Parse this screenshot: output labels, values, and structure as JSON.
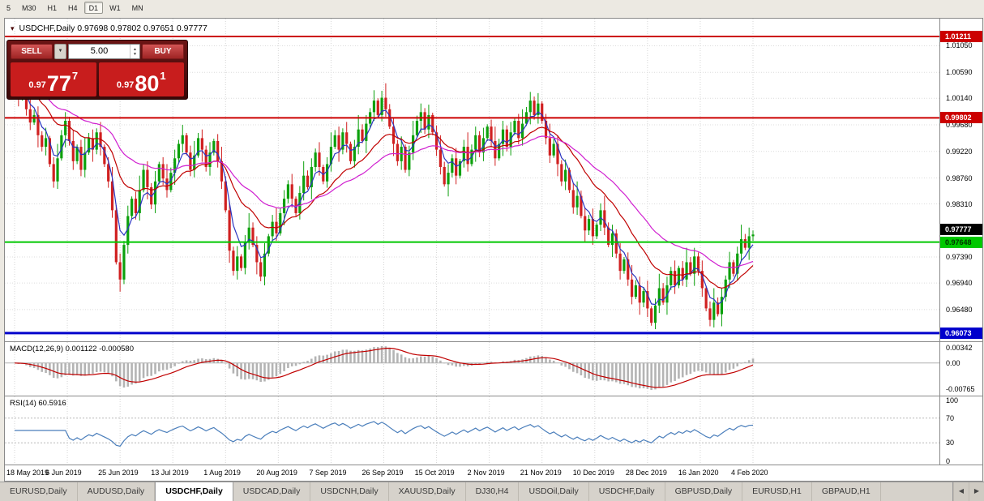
{
  "timeframe_bar": {
    "buttons": [
      "5",
      "M30",
      "H1",
      "H4",
      "D1",
      "W1",
      "MN"
    ],
    "active": "D1"
  },
  "chart": {
    "symbol_header": "USDCHF,Daily 0.97698 0.97802 0.97651 0.97777"
  },
  "trade_panel": {
    "sell_label": "SELL",
    "buy_label": "BUY",
    "volume": "5.00",
    "sell_price_big": "0.97",
    "sell_price_pips": "77",
    "sell_price_pip_sup": "7",
    "buy_price_big": "0.97",
    "buy_price_pips": "80",
    "buy_price_pip_sup": "1"
  },
  "icons": {
    "window_menu": "▾",
    "dropdown": "▼",
    "spinner_up": "▲",
    "spinner_down": "▼",
    "scroll_left": "◀",
    "scroll_right": "▶"
  },
  "price_axis": {
    "ticks": [
      "1.01050",
      "1.00590",
      "1.00140",
      "0.99680",
      "0.99220",
      "0.98760",
      "0.98310",
      "0.97390",
      "0.96940",
      "0.96480"
    ],
    "lines": [
      {
        "price": 1.01211,
        "label": "1.01211",
        "color": "#cc0000",
        "text": "#ffffff",
        "thickness": 2
      },
      {
        "price": 0.99802,
        "label": "0.99802",
        "color": "#cc0000",
        "text": "#ffffff",
        "thickness": 2
      },
      {
        "price": 0.97648,
        "label": "0.97648",
        "color": "#00c800",
        "text": "#003300",
        "thickness": 2
      },
      {
        "price": 0.96073,
        "label": "0.96073",
        "color": "#0000cc",
        "text": "#ffffff",
        "thickness": 3
      }
    ],
    "current": {
      "price": 0.97777,
      "label": "0.97777",
      "bg": "#000000",
      "text": "#ffffff"
    }
  },
  "macd_panel": {
    "label": "MACD(12,26,9) 0.001122 -0.000580",
    "axis_top": "0.00342",
    "axis_zero": "0.00",
    "axis_bottom": "-0.00765",
    "fast": 12,
    "slow": 26,
    "signal": 9,
    "histogram_color": "#b4b4b4",
    "signal_color": "#c00000"
  },
  "rsi_panel": {
    "label": "RSI(14) 60.5916",
    "axis": [
      "100",
      "70",
      "30",
      "0"
    ],
    "levels": [
      70,
      30
    ],
    "period": 14,
    "line_color": "#4a7ebb"
  },
  "date_axis": [
    "18 May 2019",
    "6 Jun 2019",
    "25 Jun 2019",
    "13 Jul 2019",
    "1 Aug 2019",
    "20 Aug 2019",
    "7 Sep 2019",
    "26 Sep 2019",
    "15 Oct 2019",
    "2 Nov 2019",
    "21 Nov 2019",
    "10 Dec 2019",
    "28 Dec 2019",
    "16 Jan 2020",
    "4 Feb 2020"
  ],
  "tab_bar": {
    "tabs": [
      "EURUSD,Daily",
      "AUDUSD,Daily",
      "USDCHF,Daily",
      "USDCAD,Daily",
      "USDCNH,Daily",
      "XAUUSD,Daily",
      "DJ30,H4",
      "USDOil,Daily",
      "USDCHF,Daily",
      "GBPUSD,Daily",
      "EURUSD,H1",
      "GBPAUD,H1"
    ],
    "active_index": 2
  },
  "chart_data": {
    "type": "candlestick",
    "symbol": "USDCHF",
    "timeframe": "Daily",
    "note": "Closes are an approximate visual reconstruction of the plotted daily candles; last bar OHLC is exact from the window title.",
    "last_ohlc": {
      "open": 0.97698,
      "high": 0.97802,
      "low": 0.97651,
      "close": 0.97777
    },
    "price_min": 0.9593,
    "price_max": 1.0152,
    "up_color": "#0ca00c",
    "down_color": "#d02020",
    "wick_up": [
      0.0007,
      0.0018,
      0.0004,
      0.0012,
      0.0025,
      0.0009,
      0.0015
    ],
    "wick_down": [
      0.0013,
      0.0004,
      0.0021,
      0.0008,
      0.0015,
      0.0005,
      0.0011
    ],
    "ma": [
      {
        "period": 5,
        "color": "#2a35c0"
      },
      {
        "period": 18,
        "color": "#c00000"
      },
      {
        "period": 36,
        "color": "#d020d0"
      }
    ],
    "closes": [
      1.004,
      1.0015,
      1.0032,
      0.9995,
      0.9972,
      0.9985,
      0.995,
      0.993,
      0.9945,
      0.99,
      0.987,
      0.991,
      0.995,
      0.9975,
      0.994,
      0.9905,
      0.993,
      0.989,
      0.992,
      0.9945,
      0.9925,
      0.9955,
      0.993,
      0.99,
      0.987,
      0.982,
      0.973,
      0.97,
      0.976,
      0.981,
      0.984,
      0.9815,
      0.9855,
      0.989,
      0.986,
      0.983,
      0.987,
      0.99,
      0.9875,
      0.9855,
      0.9885,
      0.991,
      0.9935,
      0.995,
      0.992,
      0.989,
      0.9915,
      0.9945,
      0.9925,
      0.9895,
      0.992,
      0.994,
      0.9905,
      0.987,
      0.982,
      0.975,
      0.9715,
      0.974,
      0.972,
      0.9765,
      0.979,
      0.976,
      0.973,
      0.9705,
      0.9745,
      0.9775,
      0.98,
      0.978,
      0.9815,
      0.984,
      0.9865,
      0.984,
      0.9815,
      0.985,
      0.988,
      0.986,
      0.9895,
      0.992,
      0.9895,
      0.987,
      0.99,
      0.993,
      0.995,
      0.9925,
      0.9955,
      0.9935,
      0.9905,
      0.993,
      0.996,
      0.994,
      0.997,
      0.999,
      1.001,
      0.9985,
      1.0015,
      0.9995,
      0.9965,
      0.9935,
      0.9905,
      0.993,
      0.989,
      0.992,
      0.995,
      0.9975,
      0.999,
      0.996,
      0.9985,
      0.9955,
      0.9925,
      0.9895,
      0.9865,
      0.9885,
      0.991,
      0.988,
      0.9905,
      0.993,
      0.99,
      0.9925,
      0.995,
      0.992,
      0.9945,
      0.9965,
      0.994,
      0.991,
      0.9935,
      0.996,
      0.993,
      0.9955,
      0.9975,
      0.9945,
      0.997,
      0.999,
      1.001,
      0.9985,
      1.0005,
      0.9975,
      0.9945,
      0.9915,
      0.9935,
      0.99,
      0.987,
      0.989,
      0.9855,
      0.9825,
      0.9845,
      0.981,
      0.9785,
      0.9805,
      0.9775,
      0.9795,
      0.982,
      0.979,
      0.976,
      0.978,
      0.9745,
      0.9715,
      0.9735,
      0.97,
      0.967,
      0.969,
      0.966,
      0.968,
      0.965,
      0.9625,
      0.9655,
      0.9685,
      0.966,
      0.969,
      0.9715,
      0.969,
      0.972,
      0.97,
      0.973,
      0.971,
      0.974,
      0.9715,
      0.9685,
      0.965,
      0.963,
      0.966,
      0.964,
      0.967,
      0.97,
      0.973,
      0.971,
      0.9745,
      0.977,
      0.9755,
      0.9775,
      0.9778
    ]
  }
}
